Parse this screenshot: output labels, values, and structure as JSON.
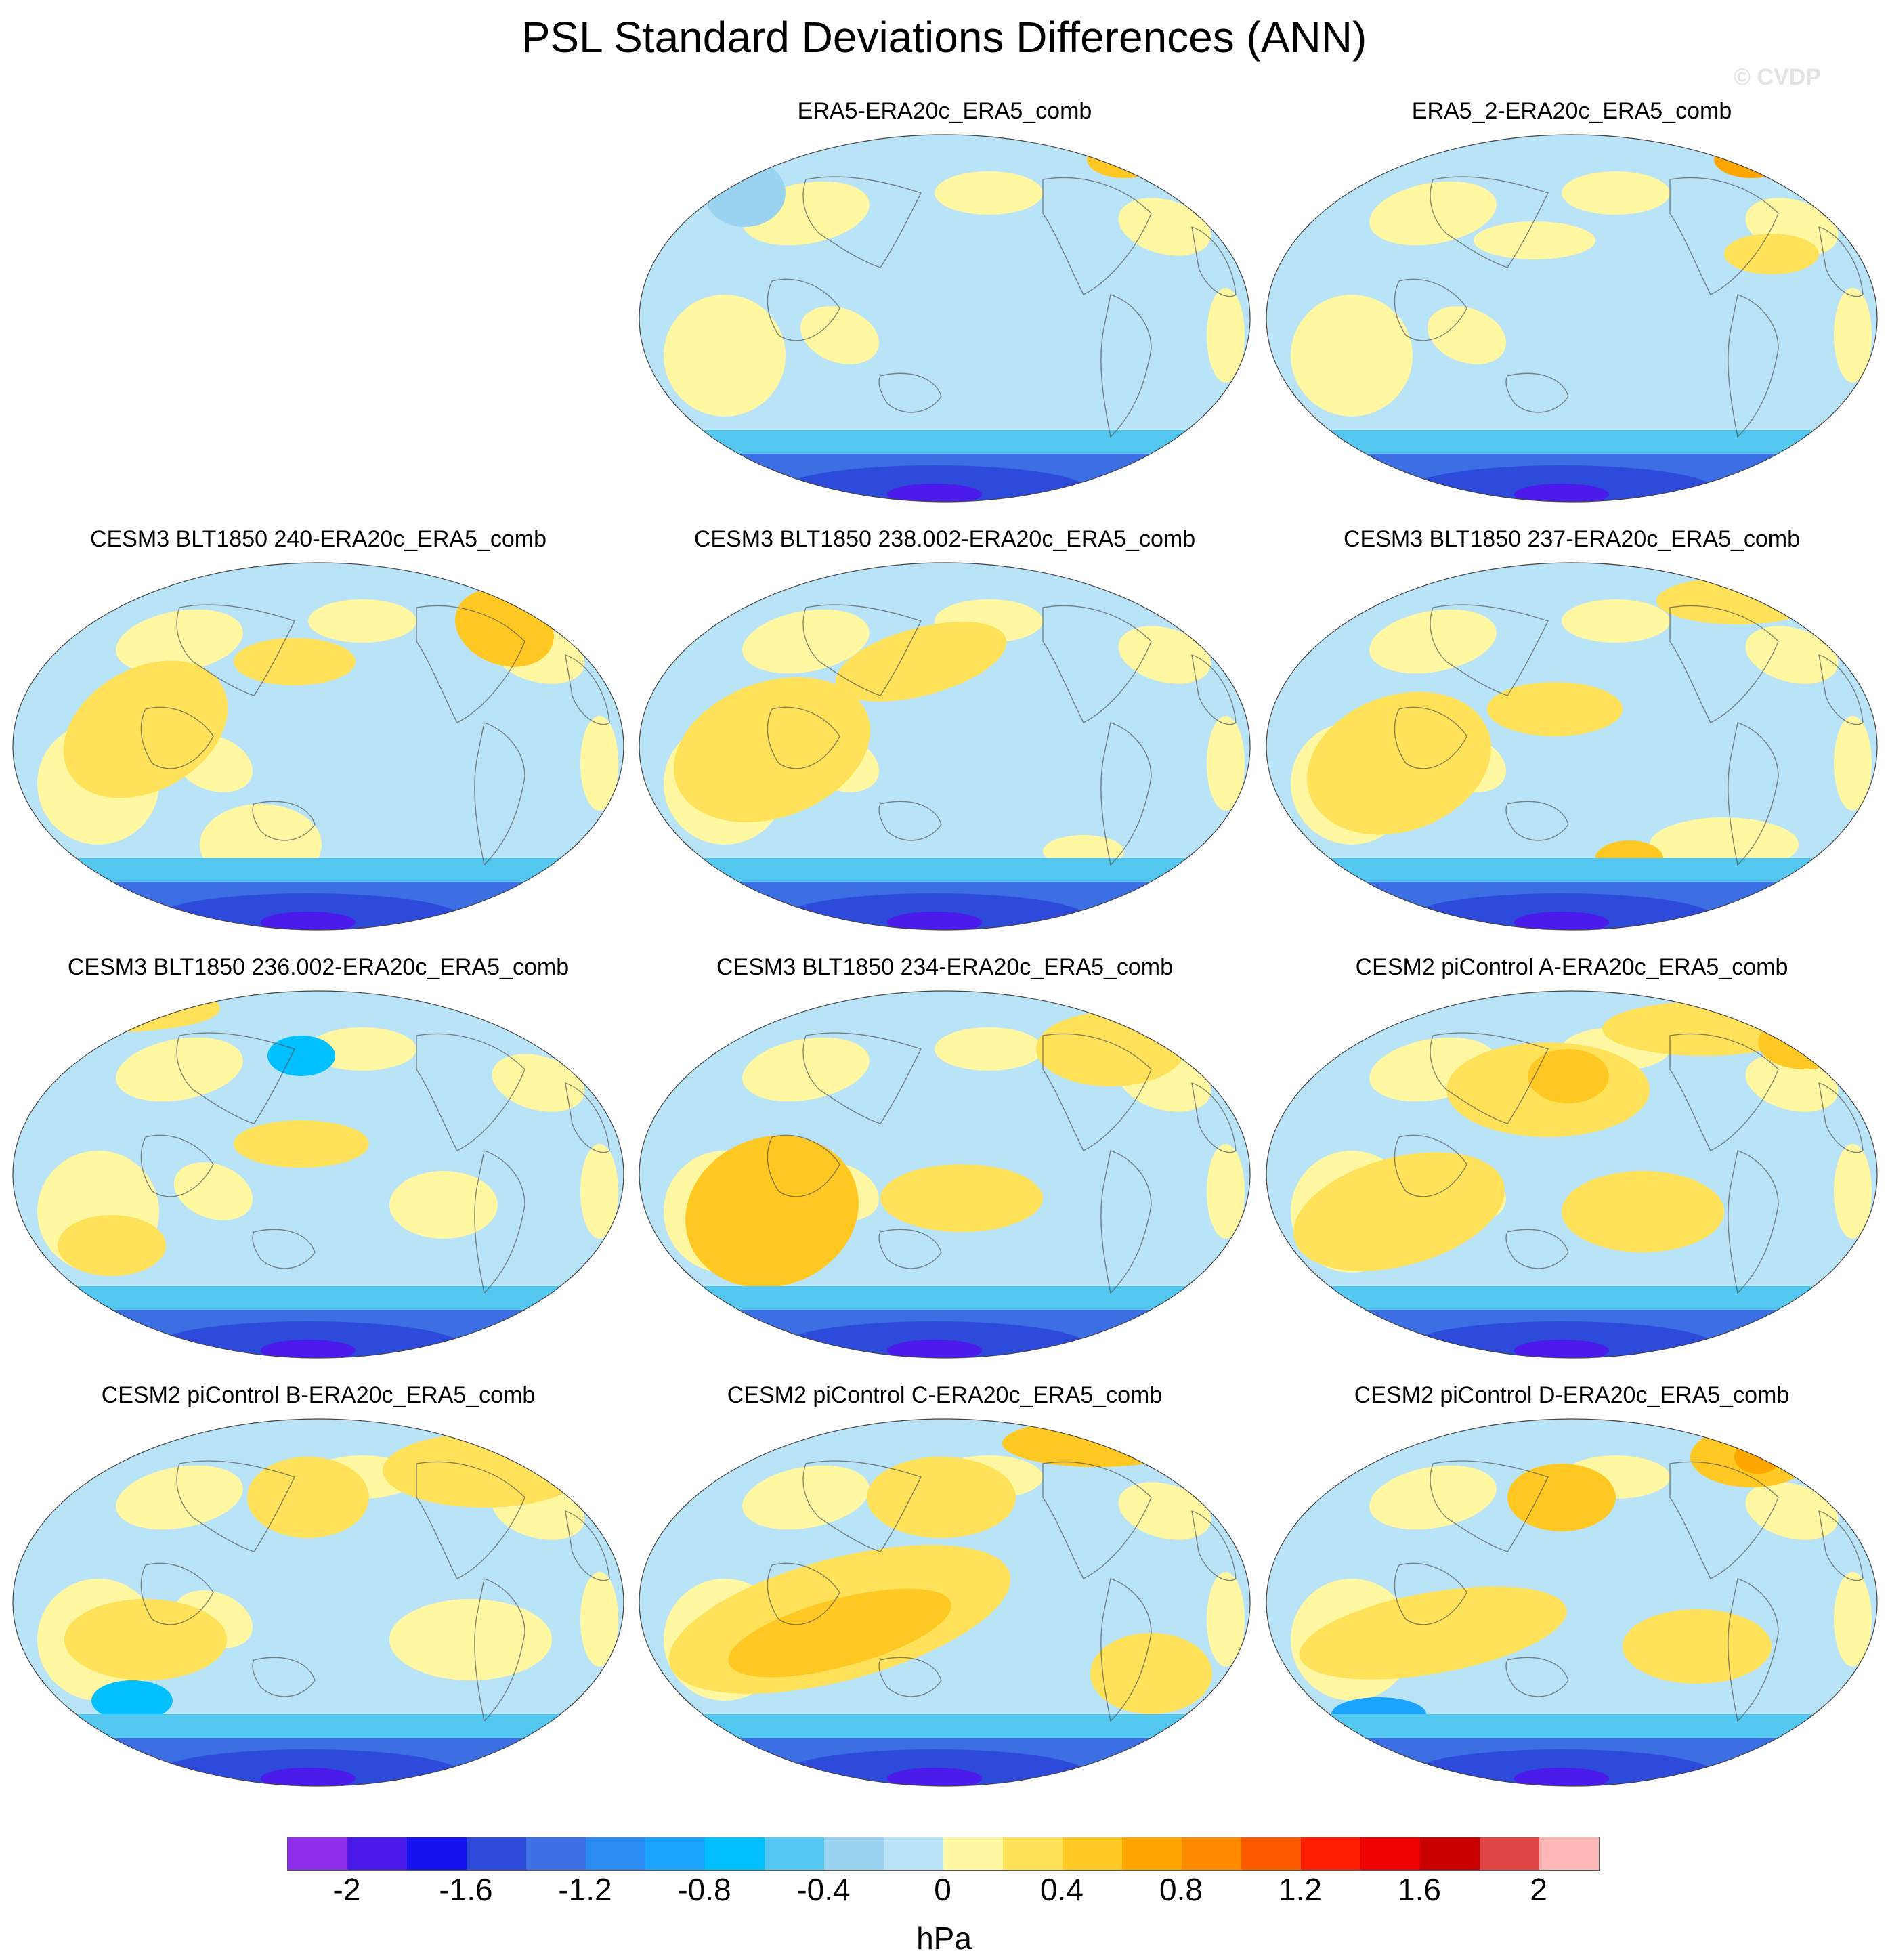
{
  "title": "PSL Standard Deviations Differences (ANN)",
  "watermark": "© CVDP",
  "units": "hPa",
  "colorbar": {
    "colors": [
      "#8e2eea",
      "#4a1bea",
      "#1413f0",
      "#2d4ada",
      "#3c6fe3",
      "#2a8bf2",
      "#1aa3ff",
      "#00c0ff",
      "#55c8f2",
      "#9ad3f0",
      "#b9e3f7",
      "#fff7a2",
      "#ffe15a",
      "#ffc822",
      "#ffa600",
      "#ff8b00",
      "#ff5b00",
      "#ff1f00",
      "#ee0000",
      "#c80000",
      "#e04646",
      "#ffb6b6"
    ],
    "tick_labels": [
      "-2",
      "-1.6",
      "-1.2",
      "-0.8",
      "-0.4",
      "0",
      "0.4",
      "0.8",
      "1.2",
      "1.6",
      "2"
    ]
  },
  "panels": [
    {
      "title": "ERA5-ERA20c_ERA5_comb"
    },
    {
      "title": "ERA5_2-ERA20c_ERA5_comb"
    },
    {
      "title": "CESM3 BLT1850 240-ERA20c_ERA5_comb"
    },
    {
      "title": "CESM3 BLT1850 238.002-ERA20c_ERA5_comb"
    },
    {
      "title": "CESM3 BLT1850 237-ERA20c_ERA5_comb"
    },
    {
      "title": "CESM3 BLT1850 236.002-ERA20c_ERA5_comb"
    },
    {
      "title": "CESM3 BLT1850 234-ERA20c_ERA5_comb"
    },
    {
      "title": "CESM2 piControl A-ERA20c_ERA5_comb"
    },
    {
      "title": "CESM2 piControl B-ERA20c_ERA5_comb"
    },
    {
      "title": "CESM2 piControl C-ERA20c_ERA5_comb"
    },
    {
      "title": "CESM2 piControl D-ERA20c_ERA5_comb"
    }
  ]
}
